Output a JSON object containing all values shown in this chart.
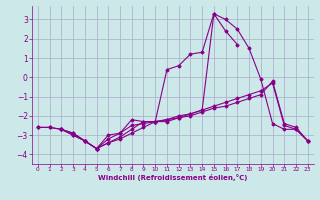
{
  "title": "",
  "xlabel": "Windchill (Refroidissement éolien,°C)",
  "background_color": "#cde8e8",
  "grid_color": "#aaaacc",
  "line_color": "#880088",
  "xlim": [
    -0.5,
    23.5
  ],
  "ylim": [
    -4.5,
    3.7
  ],
  "xticks": [
    0,
    1,
    2,
    3,
    4,
    5,
    6,
    7,
    8,
    9,
    10,
    11,
    12,
    13,
    14,
    15,
    16,
    17,
    18,
    19,
    20,
    21,
    22,
    23
  ],
  "yticks": [
    -4,
    -3,
    -2,
    -1,
    0,
    1,
    2,
    3
  ],
  "series": [
    [
      null,
      null,
      -2.7,
      -2.9,
      -3.3,
      -3.7,
      -3.0,
      -2.9,
      -2.2,
      -2.3,
      -2.3,
      -2.3,
      -2.1,
      -1.9,
      -1.7,
      3.3,
      3.0,
      2.5,
      1.5,
      -0.1,
      -2.4,
      -2.7,
      -2.7,
      -3.3
    ],
    [
      null,
      null,
      -2.7,
      -2.9,
      -3.3,
      -3.7,
      -3.2,
      -2.9,
      -2.5,
      -2.4,
      -2.3,
      0.4,
      0.6,
      1.2,
      1.3,
      3.3,
      2.4,
      1.7,
      null,
      null,
      null,
      null,
      null,
      null
    ],
    [
      -2.6,
      -2.6,
      -2.7,
      -3.0,
      -3.3,
      -3.7,
      -3.4,
      -3.1,
      -2.7,
      -2.3,
      -2.3,
      -2.2,
      -2.1,
      -2.0,
      -1.8,
      -1.6,
      -1.5,
      -1.3,
      -1.1,
      -0.9,
      -0.2,
      -2.4,
      -2.6,
      -3.3
    ],
    [
      -2.6,
      -2.6,
      -2.7,
      -3.0,
      -3.3,
      -3.7,
      -3.4,
      -3.2,
      -2.9,
      -2.6,
      -2.3,
      -2.2,
      -2.0,
      -1.9,
      -1.7,
      -1.5,
      -1.3,
      -1.1,
      -0.9,
      -0.7,
      -0.3,
      -2.5,
      -2.7,
      -3.3
    ]
  ]
}
